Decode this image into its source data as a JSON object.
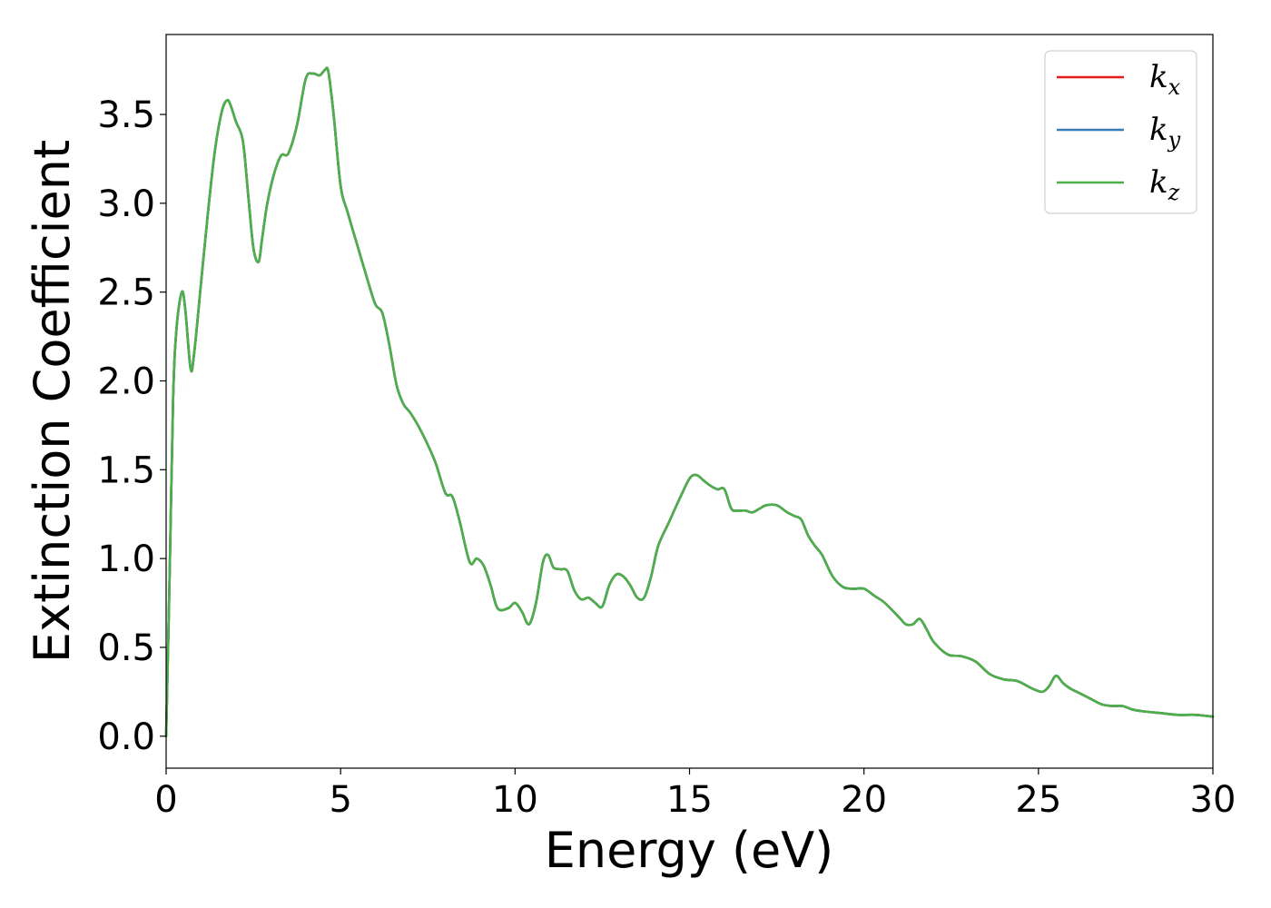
{
  "chart_data": {
    "type": "line",
    "title": "",
    "xlabel": "Energy (eV)",
    "ylabel": "Extinction Coefficient",
    "xlim": [
      0,
      30
    ],
    "ylim": [
      -0.18,
      3.95
    ],
    "x_ticks": [
      "0",
      "5",
      "10",
      "15",
      "20",
      "25",
      "30"
    ],
    "y_ticks": [
      "0.0",
      "0.5",
      "1.0",
      "1.5",
      "2.0",
      "2.5",
      "3.0",
      "3.5"
    ],
    "grid": false,
    "legend_position": "top-right",
    "x": [
      0,
      0.1,
      0.2,
      0.3,
      0.45,
      0.55,
      0.7,
      0.8,
      1.0,
      1.2,
      1.4,
      1.6,
      1.75,
      1.85,
      2.0,
      2.2,
      2.35,
      2.5,
      2.65,
      2.75,
      2.9,
      3.1,
      3.3,
      3.5,
      3.75,
      4.0,
      4.2,
      4.4,
      4.55,
      4.65,
      4.8,
      5.0,
      5.2,
      5.5,
      5.8,
      6.0,
      6.2,
      6.4,
      6.6,
      6.8,
      7.0,
      7.3,
      7.7,
      8.0,
      8.2,
      8.4,
      8.7,
      8.9,
      9.1,
      9.3,
      9.5,
      9.8,
      10.0,
      10.2,
      10.4,
      10.6,
      10.8,
      10.95,
      11.1,
      11.3,
      11.5,
      11.7,
      11.9,
      12.1,
      12.3,
      12.5,
      12.7,
      12.9,
      13.1,
      13.3,
      13.5,
      13.7,
      13.9,
      14.1,
      14.4,
      14.7,
      15.0,
      15.2,
      15.4,
      15.6,
      15.8,
      16.0,
      16.2,
      16.4,
      16.6,
      16.8,
      17.0,
      17.2,
      17.5,
      17.8,
      18.0,
      18.2,
      18.4,
      18.6,
      18.8,
      19.1,
      19.4,
      19.7,
      20.0,
      20.3,
      20.6,
      21.0,
      21.2,
      21.4,
      21.6,
      21.8,
      22.0,
      22.4,
      22.8,
      23.2,
      23.6,
      24.0,
      24.4,
      24.8,
      25.1,
      25.3,
      25.5,
      25.7,
      25.9,
      26.2,
      26.5,
      26.8,
      27.1,
      27.4,
      27.7,
      28.0,
      28.5,
      29.0,
      29.5,
      30.0
    ],
    "series": [
      {
        "name": "k_x",
        "display": {
          "main": "k",
          "sub": "x"
        },
        "color": "#e41a1c",
        "values": [
          0.0,
          0.9,
          1.9,
          2.3,
          2.5,
          2.4,
          2.07,
          2.15,
          2.55,
          2.95,
          3.3,
          3.52,
          3.58,
          3.55,
          3.46,
          3.35,
          3.05,
          2.75,
          2.67,
          2.8,
          3.0,
          3.17,
          3.27,
          3.28,
          3.44,
          3.7,
          3.73,
          3.72,
          3.75,
          3.74,
          3.5,
          3.1,
          2.95,
          2.75,
          2.55,
          2.43,
          2.38,
          2.2,
          1.98,
          1.87,
          1.82,
          1.72,
          1.55,
          1.37,
          1.35,
          1.22,
          0.98,
          1.0,
          0.96,
          0.85,
          0.72,
          0.72,
          0.75,
          0.7,
          0.63,
          0.75,
          0.98,
          1.02,
          0.95,
          0.94,
          0.93,
          0.82,
          0.77,
          0.78,
          0.75,
          0.73,
          0.85,
          0.91,
          0.9,
          0.85,
          0.78,
          0.78,
          0.9,
          1.07,
          1.2,
          1.33,
          1.45,
          1.47,
          1.44,
          1.41,
          1.39,
          1.39,
          1.28,
          1.27,
          1.27,
          1.26,
          1.28,
          1.3,
          1.3,
          1.26,
          1.24,
          1.22,
          1.13,
          1.07,
          1.02,
          0.9,
          0.84,
          0.83,
          0.83,
          0.79,
          0.75,
          0.67,
          0.63,
          0.63,
          0.66,
          0.6,
          0.53,
          0.46,
          0.45,
          0.42,
          0.35,
          0.32,
          0.31,
          0.27,
          0.25,
          0.28,
          0.34,
          0.3,
          0.27,
          0.24,
          0.21,
          0.18,
          0.17,
          0.17,
          0.15,
          0.14,
          0.13,
          0.12,
          0.12,
          0.11
        ]
      },
      {
        "name": "k_y",
        "display": {
          "main": "k",
          "sub": "y"
        },
        "color": "#377eb8",
        "values": [
          0.0,
          0.9,
          1.9,
          2.3,
          2.5,
          2.4,
          2.07,
          2.15,
          2.55,
          2.95,
          3.3,
          3.52,
          3.58,
          3.55,
          3.46,
          3.35,
          3.05,
          2.75,
          2.67,
          2.8,
          3.0,
          3.17,
          3.27,
          3.28,
          3.44,
          3.7,
          3.73,
          3.72,
          3.75,
          3.74,
          3.5,
          3.1,
          2.95,
          2.75,
          2.55,
          2.43,
          2.38,
          2.2,
          1.98,
          1.87,
          1.82,
          1.72,
          1.55,
          1.37,
          1.35,
          1.22,
          0.98,
          1.0,
          0.96,
          0.85,
          0.72,
          0.72,
          0.75,
          0.7,
          0.63,
          0.75,
          0.98,
          1.02,
          0.95,
          0.94,
          0.93,
          0.82,
          0.77,
          0.78,
          0.75,
          0.73,
          0.85,
          0.91,
          0.9,
          0.85,
          0.78,
          0.78,
          0.9,
          1.07,
          1.2,
          1.33,
          1.45,
          1.47,
          1.44,
          1.41,
          1.39,
          1.39,
          1.28,
          1.27,
          1.27,
          1.26,
          1.28,
          1.3,
          1.3,
          1.26,
          1.24,
          1.22,
          1.13,
          1.07,
          1.02,
          0.9,
          0.84,
          0.83,
          0.83,
          0.79,
          0.75,
          0.67,
          0.63,
          0.63,
          0.66,
          0.6,
          0.53,
          0.46,
          0.45,
          0.42,
          0.35,
          0.32,
          0.31,
          0.27,
          0.25,
          0.28,
          0.34,
          0.3,
          0.27,
          0.24,
          0.21,
          0.18,
          0.17,
          0.17,
          0.15,
          0.14,
          0.13,
          0.12,
          0.12,
          0.11
        ]
      },
      {
        "name": "k_z",
        "display": {
          "main": "k",
          "sub": "z"
        },
        "color": "#4daf4a",
        "values": [
          0.0,
          0.9,
          1.9,
          2.3,
          2.5,
          2.4,
          2.07,
          2.15,
          2.55,
          2.95,
          3.3,
          3.52,
          3.58,
          3.55,
          3.46,
          3.35,
          3.05,
          2.75,
          2.67,
          2.8,
          3.0,
          3.17,
          3.27,
          3.28,
          3.44,
          3.7,
          3.73,
          3.72,
          3.75,
          3.74,
          3.5,
          3.1,
          2.95,
          2.75,
          2.55,
          2.43,
          2.38,
          2.2,
          1.98,
          1.87,
          1.82,
          1.72,
          1.55,
          1.37,
          1.35,
          1.22,
          0.98,
          1.0,
          0.96,
          0.85,
          0.72,
          0.72,
          0.75,
          0.7,
          0.63,
          0.75,
          0.98,
          1.02,
          0.95,
          0.94,
          0.93,
          0.82,
          0.77,
          0.78,
          0.75,
          0.73,
          0.85,
          0.91,
          0.9,
          0.85,
          0.78,
          0.78,
          0.9,
          1.07,
          1.2,
          1.33,
          1.45,
          1.47,
          1.44,
          1.41,
          1.39,
          1.39,
          1.28,
          1.27,
          1.27,
          1.26,
          1.28,
          1.3,
          1.3,
          1.26,
          1.24,
          1.22,
          1.13,
          1.07,
          1.02,
          0.9,
          0.84,
          0.83,
          0.83,
          0.79,
          0.75,
          0.67,
          0.63,
          0.63,
          0.66,
          0.6,
          0.53,
          0.46,
          0.45,
          0.42,
          0.35,
          0.32,
          0.31,
          0.27,
          0.25,
          0.28,
          0.34,
          0.3,
          0.27,
          0.24,
          0.21,
          0.18,
          0.17,
          0.17,
          0.15,
          0.14,
          0.13,
          0.12,
          0.12,
          0.11
        ]
      }
    ]
  }
}
